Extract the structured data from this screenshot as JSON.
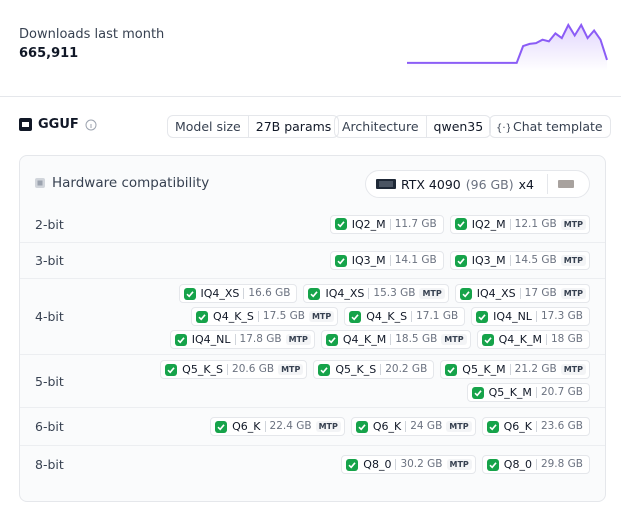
{
  "downloads": {
    "label": "Downloads last month",
    "value": "665,911",
    "trend": [
      5,
      5,
      5,
      5,
      5,
      5,
      5,
      5,
      5,
      5,
      5,
      5,
      5,
      5,
      5,
      5,
      5,
      5,
      45,
      50,
      52,
      60,
      56,
      75,
      64,
      95,
      70,
      95,
      64,
      82,
      60,
      12
    ]
  },
  "format": {
    "name": "GGUF",
    "tags": [
      {
        "key": "Model size",
        "value": "27B params"
      },
      {
        "key": "Architecture",
        "value": "qwen35"
      }
    ],
    "chat_template": "Chat template"
  },
  "hardware": {
    "title": "Hardware compatibility",
    "gpu": {
      "name": "RTX 4090",
      "memory": "(96 GB)",
      "count": "x4"
    },
    "rows": [
      {
        "label": "2-bit",
        "lines": [
          [
            {
              "name": "IQ2_M",
              "size": "11.7 GB"
            },
            {
              "name": "IQ2_M",
              "size": "12.1 GB",
              "tag": "MTP"
            }
          ]
        ]
      },
      {
        "label": "3-bit",
        "lines": [
          [
            {
              "name": "IQ3_M",
              "size": "14.1 GB"
            },
            {
              "name": "IQ3_M",
              "size": "14.5 GB",
              "tag": "MTP"
            }
          ]
        ]
      },
      {
        "label": "4-bit",
        "lines": [
          [
            {
              "name": "IQ4_XS",
              "size": "16.6 GB"
            },
            {
              "name": "IQ4_XS",
              "size": "15.3 GB",
              "tag": "MTP"
            },
            {
              "name": "IQ4_XS",
              "size": "17 GB",
              "tag": "MTP"
            }
          ],
          [
            {
              "name": "Q4_K_S",
              "size": "17.5 GB",
              "tag": "MTP"
            },
            {
              "name": "Q4_K_S",
              "size": "17.1 GB"
            },
            {
              "name": "IQ4_NL",
              "size": "17.3 GB"
            }
          ],
          [
            {
              "name": "IQ4_NL",
              "size": "17.8 GB",
              "tag": "MTP"
            },
            {
              "name": "Q4_K_M",
              "size": "18.5 GB",
              "tag": "MTP"
            },
            {
              "name": "Q4_K_M",
              "size": "18 GB"
            }
          ]
        ]
      },
      {
        "label": "5-bit",
        "lines": [
          [
            {
              "name": "Q5_K_S",
              "size": "20.6 GB",
              "tag": "MTP"
            },
            {
              "name": "Q5_K_S",
              "size": "20.2 GB"
            },
            {
              "name": "Q5_K_M",
              "size": "21.2 GB",
              "tag": "MTP"
            }
          ],
          [
            {
              "name": "Q5_K_M",
              "size": "20.7 GB"
            }
          ]
        ]
      },
      {
        "label": "6-bit",
        "lines": [
          [
            {
              "name": "Q6_K",
              "size": "22.4 GB",
              "tag": "MTP"
            },
            {
              "name": "Q6_K",
              "size": "24 GB",
              "tag": "MTP"
            },
            {
              "name": "Q6_K",
              "size": "23.6 GB"
            }
          ]
        ]
      },
      {
        "label": "8-bit",
        "lines": [
          [
            {
              "name": "Q8_0",
              "size": "30.2 GB",
              "tag": "MTP"
            },
            {
              "name": "Q8_0",
              "size": "29.8 GB"
            }
          ]
        ]
      }
    ]
  }
}
